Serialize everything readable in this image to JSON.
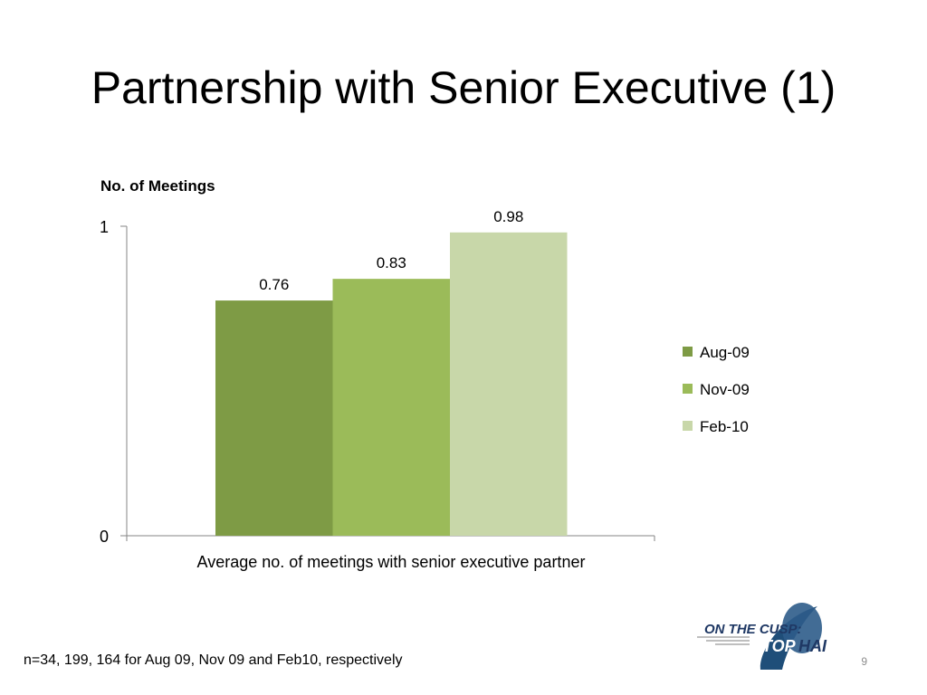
{
  "slide": {
    "title": "Partnership with Senior Executive (1)",
    "footnote": "n=34, 199, 164 for Aug 09, Nov 09 and Feb10, respectively",
    "page_number": "9"
  },
  "logo": {
    "line1": "ON THE CUSP:",
    "line2": "STOP",
    "line3": "HAI",
    "colors": {
      "swoosh": "#1f4e79",
      "text": "#1f3864"
    }
  },
  "chart_data": {
    "type": "bar",
    "title": "",
    "ylabel": "No. of Meetings",
    "xlabel": "",
    "categories": [
      "Average no. of meetings with senior executive partner"
    ],
    "series": [
      {
        "name": "Aug-09",
        "values": [
          0.76
        ],
        "label": "0.76",
        "color": "#7e9b45"
      },
      {
        "name": "Nov-09",
        "values": [
          0.83
        ],
        "label": "0.83",
        "color": "#9bbb59"
      },
      {
        "name": "Feb-10",
        "values": [
          0.98
        ],
        "label": "0.98",
        "color": "#c8d7a9"
      }
    ],
    "ylim": [
      0,
      1
    ],
    "yticks": [
      0,
      1
    ],
    "ytick_labels": [
      "0",
      "1"
    ],
    "grid": false,
    "legend": "right"
  }
}
